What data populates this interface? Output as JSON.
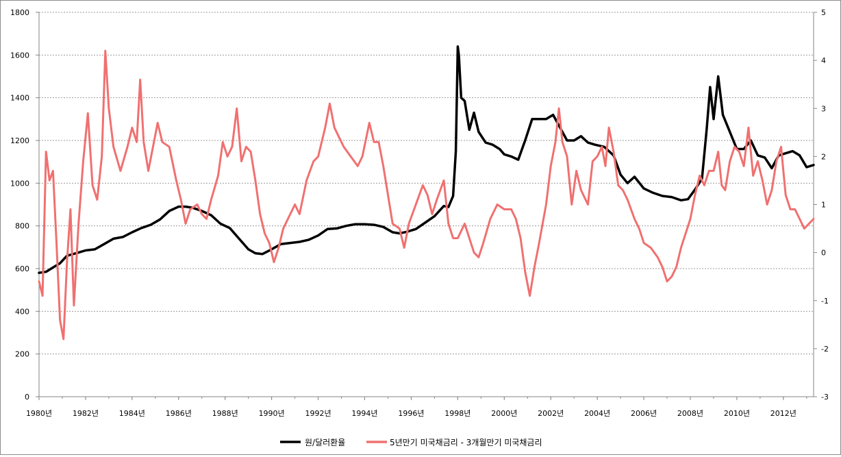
{
  "chart_data": {
    "type": "line",
    "grid": "horizontal-major",
    "legend_position": "bottom",
    "x_ticks": [
      "1980년",
      "1982년",
      "1984년",
      "1986년",
      "1988년",
      "1990년",
      "1992년",
      "1994년",
      "1996년",
      "1998년",
      "2000년",
      "2002년",
      "2004년",
      "2006년",
      "2008년",
      "2010년",
      "2012년"
    ],
    "x_range": [
      1980.0,
      2013.3
    ],
    "y_left": {
      "ylim": [
        0,
        1800
      ],
      "ticks": [
        "0",
        "200",
        "400",
        "600",
        "800",
        "1000",
        "1200",
        "1400",
        "1600",
        "1800"
      ]
    },
    "y_right": {
      "ylim": [
        -3,
        5
      ],
      "ticks": [
        "-3",
        "-2",
        "-1",
        "0",
        "1",
        "2",
        "3",
        "4",
        "5"
      ]
    },
    "series": [
      {
        "name": "원/달러환율",
        "axis": "left",
        "color": "#000000",
        "points": [
          [
            1980.0,
            580
          ],
          [
            1980.3,
            585
          ],
          [
            1980.6,
            605
          ],
          [
            1980.9,
            625
          ],
          [
            1981.2,
            660
          ],
          [
            1981.6,
            672
          ],
          [
            1982.0,
            685
          ],
          [
            1982.4,
            690
          ],
          [
            1982.8,
            715
          ],
          [
            1983.2,
            740
          ],
          [
            1983.6,
            748
          ],
          [
            1984.0,
            770
          ],
          [
            1984.4,
            790
          ],
          [
            1984.8,
            805
          ],
          [
            1985.2,
            830
          ],
          [
            1985.6,
            870
          ],
          [
            1986.0,
            890
          ],
          [
            1986.3,
            890
          ],
          [
            1986.6,
            885
          ],
          [
            1987.0,
            870
          ],
          [
            1987.4,
            850
          ],
          [
            1987.8,
            810
          ],
          [
            1988.2,
            790
          ],
          [
            1988.6,
            740
          ],
          [
            1989.0,
            690
          ],
          [
            1989.3,
            672
          ],
          [
            1989.6,
            668
          ],
          [
            1990.0,
            690
          ],
          [
            1990.4,
            715
          ],
          [
            1990.8,
            720
          ],
          [
            1991.2,
            725
          ],
          [
            1991.6,
            735
          ],
          [
            1992.0,
            755
          ],
          [
            1992.4,
            785
          ],
          [
            1992.8,
            788
          ],
          [
            1993.2,
            800
          ],
          [
            1993.6,
            808
          ],
          [
            1994.0,
            808
          ],
          [
            1994.4,
            805
          ],
          [
            1994.8,
            795
          ],
          [
            1995.2,
            770
          ],
          [
            1995.5,
            765
          ],
          [
            1995.8,
            772
          ],
          [
            1996.2,
            785
          ],
          [
            1996.6,
            815
          ],
          [
            1997.0,
            845
          ],
          [
            1997.4,
            893
          ],
          [
            1997.6,
            888
          ],
          [
            1997.8,
            940
          ],
          [
            1997.92,
            1150
          ],
          [
            1998.0,
            1640
          ],
          [
            1998.05,
            1600
          ],
          [
            1998.15,
            1400
          ],
          [
            1998.3,
            1385
          ],
          [
            1998.5,
            1250
          ],
          [
            1998.7,
            1330
          ],
          [
            1998.9,
            1240
          ],
          [
            1999.2,
            1190
          ],
          [
            1999.5,
            1180
          ],
          [
            1999.8,
            1160
          ],
          [
            2000.0,
            1135
          ],
          [
            2000.3,
            1125
          ],
          [
            2000.6,
            1110
          ],
          [
            2000.9,
            1200
          ],
          [
            2001.2,
            1300
          ],
          [
            2001.5,
            1300
          ],
          [
            2001.8,
            1300
          ],
          [
            2002.1,
            1320
          ],
          [
            2002.4,
            1260
          ],
          [
            2002.7,
            1200
          ],
          [
            2003.0,
            1200
          ],
          [
            2003.3,
            1220
          ],
          [
            2003.6,
            1190
          ],
          [
            2003.9,
            1180
          ],
          [
            2004.3,
            1170
          ],
          [
            2004.7,
            1130
          ],
          [
            2005.0,
            1040
          ],
          [
            2005.3,
            1000
          ],
          [
            2005.6,
            1030
          ],
          [
            2006.0,
            975
          ],
          [
            2006.4,
            955
          ],
          [
            2006.8,
            940
          ],
          [
            2007.2,
            935
          ],
          [
            2007.6,
            920
          ],
          [
            2007.9,
            925
          ],
          [
            2008.2,
            970
          ],
          [
            2008.5,
            1020
          ],
          [
            2008.7,
            1250
          ],
          [
            2008.85,
            1450
          ],
          [
            2009.0,
            1300
          ],
          [
            2009.2,
            1500
          ],
          [
            2009.4,
            1320
          ],
          [
            2009.7,
            1240
          ],
          [
            2010.0,
            1160
          ],
          [
            2010.3,
            1160
          ],
          [
            2010.6,
            1200
          ],
          [
            2010.9,
            1130
          ],
          [
            2011.2,
            1120
          ],
          [
            2011.5,
            1070
          ],
          [
            2011.8,
            1130
          ],
          [
            2012.1,
            1140
          ],
          [
            2012.4,
            1150
          ],
          [
            2012.7,
            1130
          ],
          [
            2013.0,
            1075
          ],
          [
            2013.3,
            1085
          ]
        ]
      },
      {
        "name": "5년만기 미국채금리 - 3개월만기 미국채금리",
        "axis": "right",
        "color": "#f07070",
        "points": [
          [
            1980.0,
            -0.6
          ],
          [
            1980.15,
            -0.9
          ],
          [
            1980.3,
            2.1
          ],
          [
            1980.45,
            1.5
          ],
          [
            1980.6,
            1.7
          ],
          [
            1980.75,
            0.2
          ],
          [
            1980.9,
            -1.4
          ],
          [
            1981.05,
            -1.8
          ],
          [
            1981.2,
            -0.2
          ],
          [
            1981.35,
            0.9
          ],
          [
            1981.5,
            -1.1
          ],
          [
            1981.7,
            0.6
          ],
          [
            1981.9,
            1.9
          ],
          [
            1982.1,
            2.9
          ],
          [
            1982.3,
            1.4
          ],
          [
            1982.5,
            1.1
          ],
          [
            1982.7,
            2.0
          ],
          [
            1982.85,
            4.2
          ],
          [
            1983.0,
            3.0
          ],
          [
            1983.2,
            2.2
          ],
          [
            1983.5,
            1.7
          ],
          [
            1983.8,
            2.2
          ],
          [
            1984.0,
            2.6
          ],
          [
            1984.2,
            2.3
          ],
          [
            1984.35,
            3.6
          ],
          [
            1984.5,
            2.3
          ],
          [
            1984.7,
            1.7
          ],
          [
            1984.9,
            2.2
          ],
          [
            1985.1,
            2.7
          ],
          [
            1985.3,
            2.3
          ],
          [
            1985.6,
            2.2
          ],
          [
            1985.9,
            1.5
          ],
          [
            1986.1,
            1.1
          ],
          [
            1986.3,
            0.6
          ],
          [
            1986.5,
            0.9
          ],
          [
            1986.8,
            1.0
          ],
          [
            1987.0,
            0.8
          ],
          [
            1987.2,
            0.7
          ],
          [
            1987.4,
            1.1
          ],
          [
            1987.7,
            1.6
          ],
          [
            1987.9,
            2.3
          ],
          [
            1988.1,
            2.0
          ],
          [
            1988.3,
            2.2
          ],
          [
            1988.5,
            3.0
          ],
          [
            1988.7,
            1.9
          ],
          [
            1988.9,
            2.2
          ],
          [
            1989.1,
            2.1
          ],
          [
            1989.3,
            1.5
          ],
          [
            1989.5,
            0.8
          ],
          [
            1989.7,
            0.4
          ],
          [
            1989.9,
            0.2
          ],
          [
            1990.1,
            -0.2
          ],
          [
            1990.3,
            0.1
          ],
          [
            1990.5,
            0.5
          ],
          [
            1990.8,
            0.8
          ],
          [
            1991.0,
            1.0
          ],
          [
            1991.2,
            0.8
          ],
          [
            1991.5,
            1.5
          ],
          [
            1991.8,
            1.9
          ],
          [
            1992.0,
            2.0
          ],
          [
            1992.3,
            2.6
          ],
          [
            1992.5,
            3.1
          ],
          [
            1992.7,
            2.6
          ],
          [
            1992.9,
            2.4
          ],
          [
            1993.1,
            2.2
          ],
          [
            1993.4,
            2.0
          ],
          [
            1993.7,
            1.8
          ],
          [
            1993.9,
            2.0
          ],
          [
            1994.2,
            2.7
          ],
          [
            1994.4,
            2.3
          ],
          [
            1994.6,
            2.3
          ],
          [
            1994.8,
            1.8
          ],
          [
            1995.0,
            1.2
          ],
          [
            1995.2,
            0.6
          ],
          [
            1995.5,
            0.5
          ],
          [
            1995.7,
            0.1
          ],
          [
            1995.9,
            0.6
          ],
          [
            1996.2,
            1.0
          ],
          [
            1996.5,
            1.4
          ],
          [
            1996.7,
            1.2
          ],
          [
            1996.9,
            0.8
          ],
          [
            1997.1,
            1.1
          ],
          [
            1997.4,
            1.5
          ],
          [
            1997.6,
            0.6
          ],
          [
            1997.8,
            0.3
          ],
          [
            1998.0,
            0.3
          ],
          [
            1998.3,
            0.6
          ],
          [
            1998.5,
            0.3
          ],
          [
            1998.7,
            0.0
          ],
          [
            1998.9,
            -0.1
          ],
          [
            1999.1,
            0.2
          ],
          [
            1999.4,
            0.7
          ],
          [
            1999.7,
            1.0
          ],
          [
            2000.0,
            0.9
          ],
          [
            2000.3,
            0.9
          ],
          [
            2000.5,
            0.7
          ],
          [
            2000.7,
            0.3
          ],
          [
            2000.9,
            -0.4
          ],
          [
            2001.1,
            -0.9
          ],
          [
            2001.3,
            -0.3
          ],
          [
            2001.5,
            0.2
          ],
          [
            2001.8,
            1.0
          ],
          [
            2002.0,
            1.8
          ],
          [
            2002.2,
            2.3
          ],
          [
            2002.35,
            3.0
          ],
          [
            2002.5,
            2.3
          ],
          [
            2002.7,
            2.0
          ],
          [
            2002.9,
            1.0
          ],
          [
            2003.1,
            1.7
          ],
          [
            2003.3,
            1.3
          ],
          [
            2003.6,
            1.0
          ],
          [
            2003.8,
            1.9
          ],
          [
            2004.0,
            2.0
          ],
          [
            2004.2,
            2.2
          ],
          [
            2004.35,
            1.8
          ],
          [
            2004.5,
            2.6
          ],
          [
            2004.7,
            2.1
          ],
          [
            2004.9,
            1.4
          ],
          [
            2005.1,
            1.3
          ],
          [
            2005.3,
            1.1
          ],
          [
            2005.6,
            0.7
          ],
          [
            2005.8,
            0.5
          ],
          [
            2006.0,
            0.2
          ],
          [
            2006.3,
            0.1
          ],
          [
            2006.6,
            -0.1
          ],
          [
            2006.8,
            -0.3
          ],
          [
            2007.0,
            -0.6
          ],
          [
            2007.2,
            -0.5
          ],
          [
            2007.4,
            -0.3
          ],
          [
            2007.6,
            0.1
          ],
          [
            2007.8,
            0.4
          ],
          [
            2008.0,
            0.7
          ],
          [
            2008.2,
            1.2
          ],
          [
            2008.4,
            1.6
          ],
          [
            2008.6,
            1.4
          ],
          [
            2008.8,
            1.7
          ],
          [
            2009.0,
            1.7
          ],
          [
            2009.2,
            2.1
          ],
          [
            2009.35,
            1.4
          ],
          [
            2009.5,
            1.3
          ],
          [
            2009.7,
            1.9
          ],
          [
            2009.9,
            2.2
          ],
          [
            2010.1,
            2.1
          ],
          [
            2010.3,
            1.8
          ],
          [
            2010.5,
            2.6
          ],
          [
            2010.7,
            1.6
          ],
          [
            2010.9,
            1.9
          ],
          [
            2011.1,
            1.5
          ],
          [
            2011.3,
            1.0
          ],
          [
            2011.5,
            1.3
          ],
          [
            2011.7,
            1.9
          ],
          [
            2011.9,
            2.2
          ],
          [
            2012.1,
            1.2
          ],
          [
            2012.3,
            0.9
          ],
          [
            2012.5,
            0.9
          ],
          [
            2012.7,
            0.7
          ],
          [
            2012.9,
            0.5
          ],
          [
            2013.1,
            0.6
          ],
          [
            2013.3,
            0.7
          ]
        ]
      }
    ]
  }
}
